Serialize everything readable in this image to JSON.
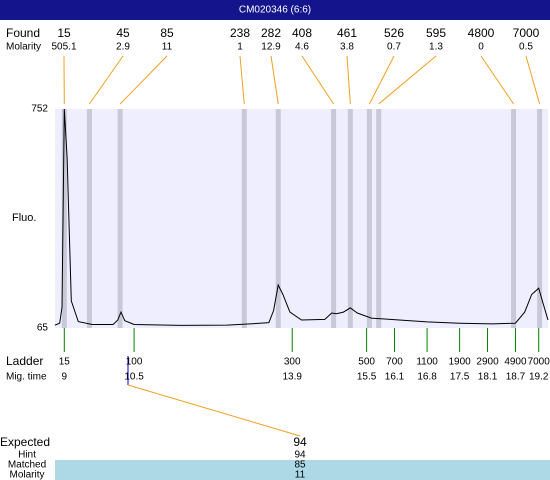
{
  "chart_data": {
    "type": "line",
    "title": "CM020346 (6:6)",
    "found_label": "Found",
    "molarity_label": "Molarity",
    "found": [
      15,
      45,
      85,
      238,
      282,
      408,
      461,
      526,
      595,
      4800,
      7000
    ],
    "molarity": [
      505.1,
      2.9,
      11,
      1,
      12.9,
      4.6,
      3.8,
      0.7,
      1.3,
      0,
      0.5
    ],
    "peak_times": [
      9.0,
      9.54,
      10.2,
      12.87,
      13.6,
      14.79,
      15.15,
      15.56,
      15.76,
      18.66,
      19.22
    ],
    "y_axis_label": "Fluo.",
    "ylim": [
      65,
      752
    ],
    "yticks": [
      65,
      752
    ],
    "xlim": [
      8.8,
      19.4
    ],
    "x": [
      8.8,
      8.9,
      8.95,
      9.0,
      9.06,
      9.15,
      9.3,
      9.6,
      10.05,
      10.15,
      10.22,
      10.3,
      10.5,
      11.5,
      12.5,
      13.0,
      13.4,
      13.5,
      13.6,
      13.7,
      13.85,
      14.1,
      14.6,
      14.75,
      14.85,
      15.0,
      15.15,
      15.3,
      15.6,
      16.2,
      16.8,
      17.5,
      18.2,
      18.7,
      18.9,
      19.05,
      19.2,
      19.3,
      19.4
    ],
    "series": [
      {
        "color": "#000000",
        "values": [
          74,
          80,
          130,
          752,
          600,
          150,
          85,
          76,
          76,
          90,
          115,
          88,
          76,
          73,
          74,
          78,
          82,
          120,
          200,
          170,
          115,
          90,
          92,
          112,
          110,
          115,
          128,
          112,
          96,
          90,
          84,
          80,
          78,
          80,
          115,
          170,
          190,
          140,
          90
        ]
      }
    ],
    "ladder_label": "Ladder",
    "mig_time_label": "Mig. time",
    "ladder": [
      15,
      100,
      300,
      500,
      700,
      1100,
      1900,
      2900,
      4900,
      7000
    ],
    "mig_times": [
      9,
      10.5,
      13.9,
      15.5,
      16.1,
      16.8,
      17.5,
      18.1,
      18.7,
      19.2
    ],
    "expected_label": "Expected",
    "expected": 94,
    "hint_label": "Hint",
    "hint": 94,
    "matched_label": "Matched",
    "matched": 85,
    "molarity2_label": "Molarity",
    "molarity2": 11
  }
}
